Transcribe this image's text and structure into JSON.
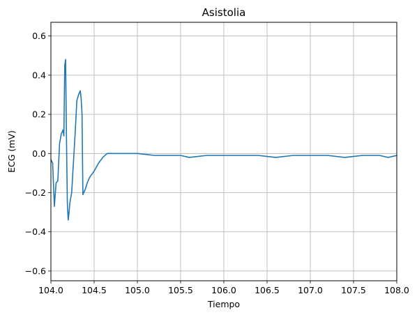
{
  "chart_data": {
    "type": "line",
    "title": "Asistolia",
    "xlabel": "Tiempo",
    "ylabel": "ECG (mV)",
    "xlim": [
      104.0,
      108.0
    ],
    "ylim": [
      -0.65,
      0.67
    ],
    "xticks": [
      104.0,
      104.5,
      105.0,
      105.5,
      106.0,
      106.5,
      107.0,
      107.5,
      108.0
    ],
    "xtick_labels": [
      "104.0",
      "104.5",
      "105.0",
      "105.5",
      "106.0",
      "106.5",
      "107.0",
      "107.5",
      "108.0"
    ],
    "yticks": [
      -0.6,
      -0.4,
      -0.2,
      0.0,
      0.2,
      0.4,
      0.6
    ],
    "ytick_labels": [
      "−0.6",
      "−0.4",
      "−0.2",
      "0.0",
      "0.2",
      "0.4",
      "0.6"
    ],
    "grid": true,
    "line_color": "#1f77b4",
    "grid_color": "#b0b0b0",
    "series": [
      {
        "x": [
          104.0,
          104.02,
          104.04,
          104.06,
          104.08,
          104.1,
          104.12,
          104.14,
          104.15,
          104.16,
          104.17,
          104.18,
          104.19,
          104.2,
          104.21,
          104.22,
          104.24,
          104.26,
          104.28,
          104.3,
          104.32,
          104.34,
          104.35,
          104.36,
          104.37,
          104.38,
          104.4,
          104.42,
          104.45,
          104.5,
          104.55,
          104.6,
          104.65,
          104.7,
          104.8,
          104.9,
          105.0,
          105.2,
          105.4,
          105.5,
          105.6,
          105.8,
          106.0,
          106.2,
          106.4,
          106.6,
          106.8,
          107.0,
          107.2,
          107.4,
          107.6,
          107.8,
          107.9,
          108.0
        ],
        "y": [
          -0.03,
          -0.05,
          -0.27,
          -0.15,
          -0.14,
          0.05,
          0.1,
          0.12,
          0.09,
          0.45,
          0.48,
          0.08,
          -0.25,
          -0.34,
          -0.3,
          -0.25,
          -0.2,
          -0.05,
          0.1,
          0.27,
          0.3,
          0.32,
          0.28,
          0.2,
          -0.21,
          -0.2,
          -0.18,
          -0.15,
          -0.12,
          -0.09,
          -0.05,
          -0.02,
          0.0,
          0.0,
          0.0,
          0.0,
          0.0,
          -0.01,
          -0.01,
          -0.01,
          -0.02,
          -0.01,
          -0.01,
          -0.01,
          -0.01,
          -0.02,
          -0.01,
          -0.01,
          -0.01,
          -0.02,
          -0.01,
          -0.01,
          -0.02,
          -0.01
        ]
      }
    ]
  }
}
